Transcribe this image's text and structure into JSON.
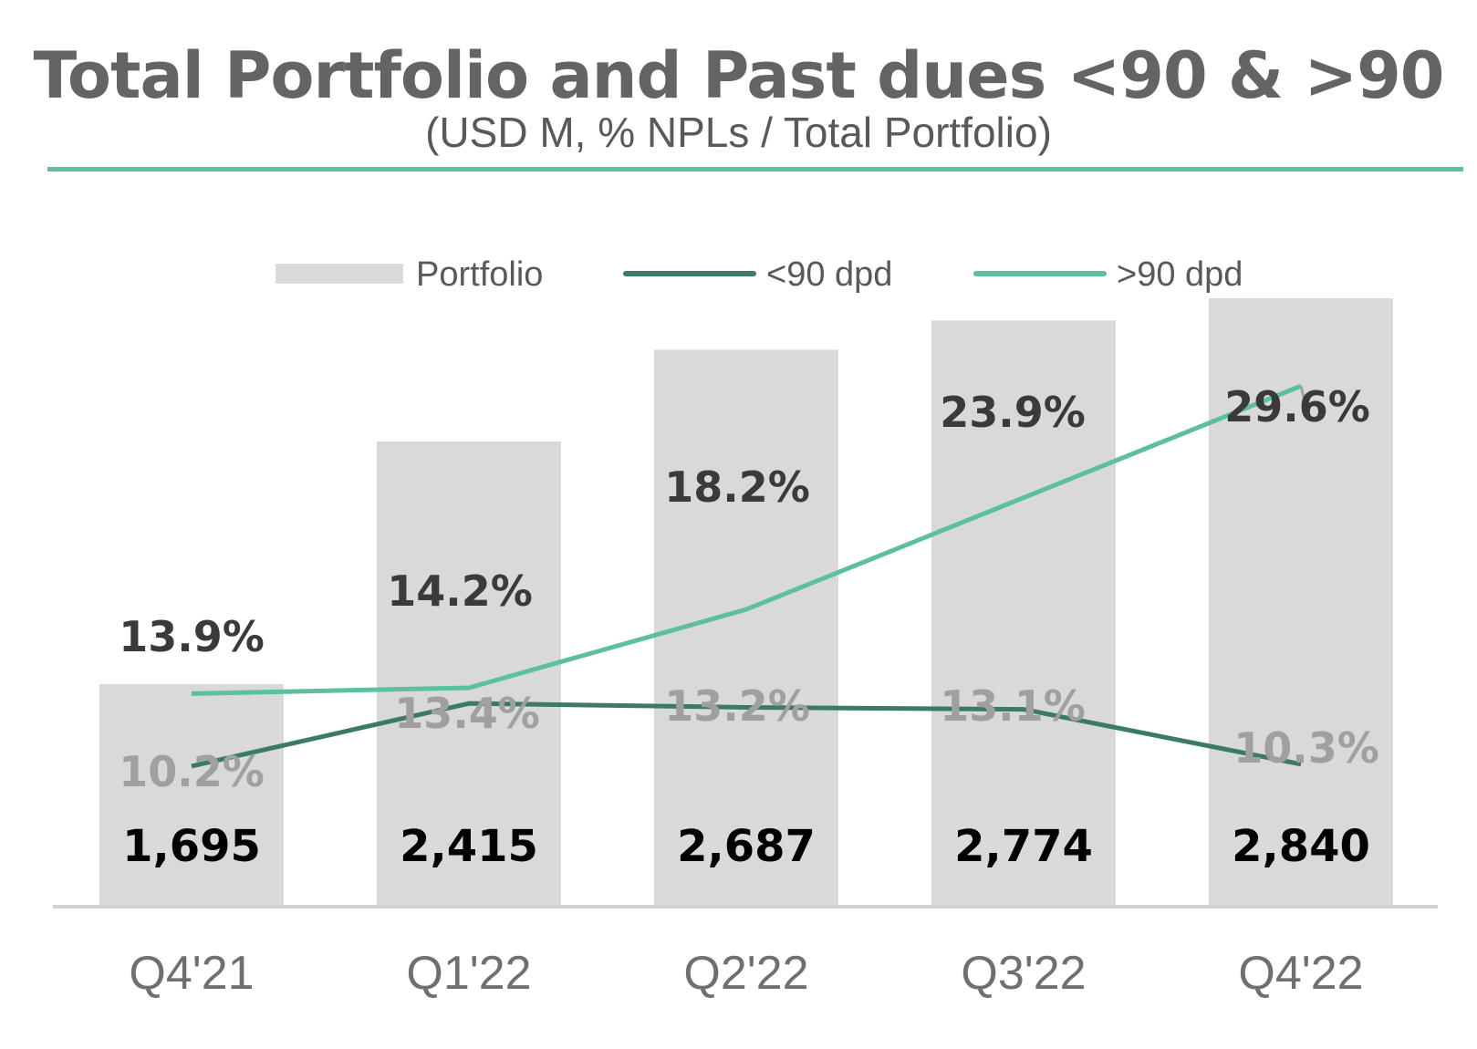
{
  "chart_data": {
    "type": "bar",
    "title": "Total Portfolio and Past dues <90 & >90",
    "subtitle": "(USD M, % NPLs / Total Portfolio)",
    "categories": [
      "Q4'21",
      "Q1'22",
      "Q2'22",
      "Q3'22",
      "Q4'22"
    ],
    "series": [
      {
        "name": "Portfolio",
        "kind": "bar",
        "color": "#d9d9d9",
        "values": [
          1695,
          2415,
          2687,
          2774,
          2840
        ],
        "labels": [
          "1,695",
          "2,415",
          "2,687",
          "2,774",
          "2,840"
        ]
      },
      {
        "name": "<90 dpd",
        "kind": "line",
        "color": "#3a7a67",
        "values": [
          10.2,
          13.4,
          13.2,
          13.1,
          10.3
        ],
        "labels": [
          "10.2%",
          "13.4%",
          "13.2%",
          "13.1%",
          "10.3%"
        ]
      },
      {
        "name": ">90 dpd",
        "kind": "line",
        "color": "#5bbfa0",
        "values": [
          13.9,
          14.2,
          18.2,
          23.9,
          29.6
        ],
        "labels": [
          "13.9%",
          "14.2%",
          "18.2%",
          "23.9%",
          "29.6%"
        ]
      }
    ],
    "legend_position": "top-center",
    "grid": false
  }
}
